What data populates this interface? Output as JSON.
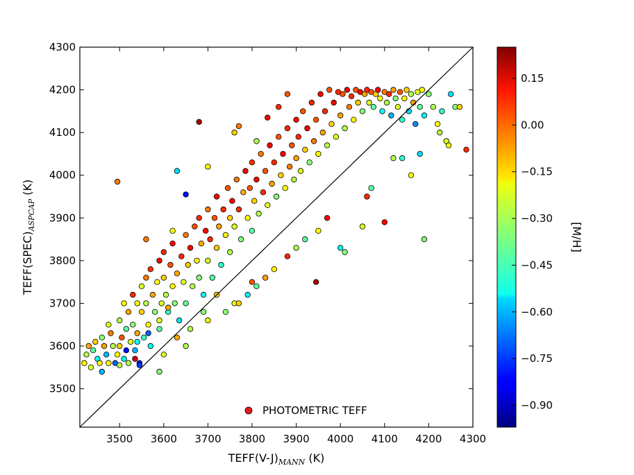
{
  "chart_data": {
    "type": "scatter",
    "xlabel": "TEFF(V-J)",
    "xlabel_sub": "MANN",
    "xlabel_unit": " (K)",
    "ylabel": "TEFF(SPEC)",
    "ylabel_sub": "ASPCAP",
    "ylabel_unit": " (K)",
    "xlim": [
      3410,
      4300
    ],
    "ylim": [
      3410,
      4300
    ],
    "xticks": [
      3500,
      3600,
      3700,
      3800,
      3900,
      4000,
      4100,
      4200,
      4300
    ],
    "yticks": [
      3500,
      3600,
      3700,
      3800,
      3900,
      4000,
      4100,
      4200,
      4300
    ],
    "one_to_one_line": true,
    "grid": false,
    "legend": {
      "label": "PHOTOMETRIC TEFF",
      "color": "#e31a1c",
      "placement": "lower-center"
    },
    "colorbar": {
      "label": "[M/H]",
      "range": [
        -0.97,
        0.25
      ],
      "ticks": [
        "0.15",
        "0.00",
        "−0.15",
        "−0.30",
        "−0.45",
        "−0.60",
        "−0.75",
        "−0.90"
      ],
      "tick_values": [
        0.15,
        0.0,
        -0.15,
        -0.3,
        -0.45,
        -0.6,
        -0.75,
        -0.9
      ],
      "colormap": "jet"
    },
    "series": [
      {
        "points": [
          [
            3420,
            3560,
            -0.2
          ],
          [
            3425,
            3580,
            -0.3
          ],
          [
            3430,
            3600,
            -0.1
          ],
          [
            3435,
            3550,
            -0.25
          ],
          [
            3440,
            3590,
            -0.4
          ],
          [
            3445,
            3610,
            -0.15
          ],
          [
            3450,
            3570,
            -0.5
          ],
          [
            3455,
            3560,
            -0.2
          ],
          [
            3460,
            3620,
            -0.35
          ],
          [
            3465,
            3600,
            -0.1
          ],
          [
            3470,
            3580,
            -0.6
          ],
          [
            3475,
            3650,
            -0.25
          ],
          [
            3480,
            3630,
            -0.05
          ],
          [
            3485,
            3600,
            -0.3
          ],
          [
            3490,
            3560,
            -0.7
          ],
          [
            3495,
            3580,
            -0.2
          ],
          [
            3500,
            3660,
            -0.3
          ],
          [
            3500,
            3600,
            -0.15
          ],
          [
            3505,
            3620,
            0.0
          ],
          [
            3510,
            3570,
            -0.5
          ],
          [
            3510,
            3700,
            -0.2
          ],
          [
            3515,
            3640,
            -0.4
          ],
          [
            3520,
            3680,
            -0.1
          ],
          [
            3520,
            3560,
            -0.3
          ],
          [
            3525,
            3610,
            -0.25
          ],
          [
            3530,
            3720,
            0.05
          ],
          [
            3530,
            3650,
            -0.35
          ],
          [
            3535,
            3590,
            -0.6
          ],
          [
            3540,
            3700,
            -0.2
          ],
          [
            3540,
            3630,
            -0.1
          ],
          [
            3545,
            3560,
            -0.8
          ],
          [
            3550,
            3740,
            -0.25
          ],
          [
            3550,
            3680,
            -0.15
          ],
          [
            3555,
            3620,
            -0.45
          ],
          [
            3560,
            3760,
            -0.05
          ],
          [
            3560,
            3700,
            -0.3
          ],
          [
            3565,
            3650,
            -0.2
          ],
          [
            3570,
            3600,
            -0.5
          ],
          [
            3570,
            3780,
            0.05
          ],
          [
            3575,
            3720,
            -0.1
          ],
          [
            3580,
            3680,
            -0.35
          ],
          [
            3585,
            3750,
            -0.2
          ],
          [
            3590,
            3800,
            0.1
          ],
          [
            3590,
            3640,
            -0.4
          ],
          [
            3595,
            3700,
            -0.25
          ],
          [
            3600,
            3760,
            -0.15
          ],
          [
            3600,
            3820,
            0.05
          ],
          [
            3605,
            3720,
            -0.3
          ],
          [
            3610,
            3680,
            -0.45
          ],
          [
            3615,
            3790,
            0.0
          ],
          [
            3620,
            3740,
            -0.2
          ],
          [
            3620,
            3840,
            0.1
          ],
          [
            3625,
            3700,
            -0.35
          ],
          [
            3630,
            3770,
            -0.1
          ],
          [
            3635,
            3660,
            -0.55
          ],
          [
            3640,
            3810,
            0.05
          ],
          [
            3645,
            3750,
            -0.25
          ],
          [
            3650,
            3860,
            -0.05
          ],
          [
            3650,
            3700,
            -0.4
          ],
          [
            3655,
            3790,
            -0.15
          ],
          [
            3660,
            3830,
            0.1
          ],
          [
            3665,
            3740,
            -0.3
          ],
          [
            3670,
            3880,
            0.0
          ],
          [
            3675,
            3800,
            -0.2
          ],
          [
            3680,
            3760,
            -0.35
          ],
          [
            3680,
            3900,
            0.05
          ],
          [
            3685,
            3840,
            -0.1
          ],
          [
            3690,
            3720,
            -0.5
          ],
          [
            3695,
            3870,
            0.1
          ],
          [
            3700,
            3800,
            -0.25
          ],
          [
            3700,
            3920,
            -0.05
          ],
          [
            3705,
            3850,
            0.05
          ],
          [
            3710,
            3760,
            -0.4
          ],
          [
            3715,
            3900,
            0.0
          ],
          [
            3720,
            3830,
            -0.15
          ],
          [
            3720,
            3950,
            0.1
          ],
          [
            3725,
            3880,
            -0.1
          ],
          [
            3730,
            3790,
            -0.45
          ],
          [
            3735,
            3920,
            0.05
          ],
          [
            3740,
            3860,
            -0.2
          ],
          [
            3745,
            3970,
            0.0
          ],
          [
            3750,
            3900,
            -0.15
          ],
          [
            3750,
            3820,
            -0.3
          ],
          [
            3755,
            3940,
            0.1
          ],
          [
            3760,
            3880,
            -0.25
          ],
          [
            3765,
            3990,
            -0.05
          ],
          [
            3770,
            3920,
            0.05
          ],
          [
            3775,
            3850,
            -0.35
          ],
          [
            3780,
            3960,
            -0.1
          ],
          [
            3785,
            4010,
            0.1
          ],
          [
            3790,
            3900,
            -0.2
          ],
          [
            3795,
            3970,
            0.0
          ],
          [
            3800,
            3870,
            -0.4
          ],
          [
            3800,
            4030,
            0.05
          ],
          [
            3805,
            3940,
            -0.15
          ],
          [
            3810,
            3990,
            0.1
          ],
          [
            3815,
            3910,
            -0.3
          ],
          [
            3820,
            4050,
            -0.05
          ],
          [
            3825,
            3960,
            0.05
          ],
          [
            3830,
            4010,
            0.0
          ],
          [
            3835,
            3930,
            -0.25
          ],
          [
            3840,
            4070,
            0.1
          ],
          [
            3845,
            3980,
            -0.1
          ],
          [
            3850,
            4030,
            0.05
          ],
          [
            3855,
            3950,
            -0.35
          ],
          [
            3860,
            4090,
            0.0
          ],
          [
            3865,
            4000,
            -0.15
          ],
          [
            3870,
            4050,
            0.1
          ],
          [
            3875,
            3970,
            -0.2
          ],
          [
            3880,
            4110,
            0.05
          ],
          [
            3885,
            4020,
            -0.05
          ],
          [
            3890,
            4070,
            0.0
          ],
          [
            3895,
            3990,
            -0.3
          ],
          [
            3900,
            4130,
            0.1
          ],
          [
            3900,
            4040,
            -0.1
          ],
          [
            3905,
            4090,
            0.05
          ],
          [
            3910,
            4010,
            -0.25
          ],
          [
            3915,
            4150,
            0.0
          ],
          [
            3920,
            4060,
            -0.15
          ],
          [
            3925,
            4110,
            0.1
          ],
          [
            3930,
            4030,
            -0.35
          ],
          [
            3935,
            4170,
            0.05
          ],
          [
            3940,
            4080,
            -0.05
          ],
          [
            3945,
            4130,
            0.0
          ],
          [
            3950,
            4050,
            -0.2
          ],
          [
            3955,
            4190,
            0.1
          ],
          [
            3960,
            4100,
            -0.1
          ],
          [
            3965,
            4150,
            0.05
          ],
          [
            3970,
            4070,
            -0.3
          ],
          [
            3975,
            4200,
            0.0
          ],
          [
            3980,
            4120,
            -0.15
          ],
          [
            3985,
            4170,
            0.1
          ],
          [
            3990,
            4090,
            -0.25
          ],
          [
            3995,
            4195,
            0.05
          ],
          [
            4000,
            4140,
            -0.1
          ],
          [
            4005,
            4190,
            0.0
          ],
          [
            4010,
            4110,
            -0.3
          ],
          [
            4015,
            4200,
            0.1
          ],
          [
            4020,
            4160,
            -0.05
          ],
          [
            4025,
            4185,
            0.05
          ],
          [
            4030,
            4130,
            -0.2
          ],
          [
            4035,
            4200,
            0.0
          ],
          [
            4040,
            4170,
            -0.15
          ],
          [
            4045,
            4195,
            0.1
          ],
          [
            4050,
            4150,
            -0.35
          ],
          [
            4055,
            4190,
            -0.1
          ],
          [
            4060,
            4200,
            0.05
          ],
          [
            4065,
            4170,
            -0.25
          ],
          [
            4070,
            4195,
            0.0
          ],
          [
            4075,
            4160,
            -0.4
          ],
          [
            4080,
            4190,
            -0.15
          ],
          [
            4085,
            4200,
            0.1
          ],
          [
            4090,
            4180,
            -0.2
          ],
          [
            4095,
            4150,
            -0.5
          ],
          [
            4100,
            4195,
            -0.05
          ],
          [
            4105,
            4170,
            -0.3
          ],
          [
            4110,
            4190,
            0.05
          ],
          [
            4115,
            4140,
            -0.6
          ],
          [
            4120,
            4200,
            -0.1
          ],
          [
            4125,
            4180,
            -0.35
          ],
          [
            4130,
            4160,
            -0.25
          ],
          [
            4135,
            4195,
            0.0
          ],
          [
            4140,
            4130,
            -0.45
          ],
          [
            4145,
            4180,
            -0.2
          ],
          [
            4150,
            4200,
            -0.15
          ],
          [
            4155,
            4150,
            -0.55
          ],
          [
            4160,
            4190,
            -0.3
          ],
          [
            4165,
            4170,
            -0.1
          ],
          [
            4170,
            4120,
            -0.65
          ],
          [
            4175,
            4195,
            -0.25
          ],
          [
            4180,
            4160,
            -0.4
          ],
          [
            4185,
            4200,
            -0.2
          ],
          [
            4190,
            4140,
            -0.5
          ],
          [
            4200,
            4190,
            -0.35
          ],
          [
            4210,
            4160,
            -0.3
          ],
          [
            4220,
            4120,
            -0.2
          ],
          [
            4230,
            4150,
            -0.45
          ],
          [
            4240,
            4080,
            -0.25
          ],
          [
            4250,
            4190,
            -0.55
          ],
          [
            4260,
            4160,
            -0.35
          ],
          [
            4270,
            4160,
            -0.15
          ],
          [
            4285,
            4060,
            0.05
          ],
          [
            4245,
            4070,
            -0.2
          ],
          [
            4225,
            4100,
            -0.3
          ],
          [
            3620,
            3870,
            -0.2
          ],
          [
            3560,
            3850,
            -0.05
          ],
          [
            3660,
            3640,
            -0.3
          ],
          [
            3690,
            3680,
            -0.35
          ],
          [
            3720,
            3720,
            -0.15
          ],
          [
            3760,
            3700,
            -0.25
          ],
          [
            3790,
            3720,
            -0.5
          ],
          [
            3800,
            3750,
            0.0
          ],
          [
            3830,
            3760,
            -0.1
          ],
          [
            3850,
            3780,
            -0.2
          ],
          [
            3880,
            3810,
            0.05
          ],
          [
            3900,
            3830,
            -0.3
          ],
          [
            3920,
            3850,
            -0.4
          ],
          [
            3950,
            3870,
            -0.2
          ],
          [
            3970,
            3900,
            0.1
          ],
          [
            4000,
            3830,
            -0.5
          ],
          [
            4010,
            3820,
            -0.35
          ],
          [
            4050,
            3880,
            -0.25
          ],
          [
            4070,
            3970,
            -0.4
          ],
          [
            4100,
            3890,
            0.1
          ],
          [
            4060,
            3950,
            0.05
          ],
          [
            4120,
            4040,
            -0.3
          ],
          [
            4140,
            4040,
            -0.45
          ],
          [
            4160,
            4000,
            -0.2
          ],
          [
            4180,
            4050,
            -0.55
          ],
          [
            4190,
            3850,
            -0.35
          ],
          [
            3945,
            3750,
            0.2
          ],
          [
            3680,
            4125,
            0.2
          ],
          [
            3495,
            3985,
            -0.05
          ],
          [
            3630,
            4010,
            -0.55
          ],
          [
            3650,
            3955,
            -0.8
          ],
          [
            3700,
            4020,
            -0.2
          ],
          [
            3760,
            4100,
            -0.15
          ],
          [
            3770,
            4115,
            -0.05
          ],
          [
            3810,
            4080,
            -0.3
          ],
          [
            3835,
            4135,
            0.1
          ],
          [
            3860,
            4160,
            0.05
          ],
          [
            3880,
            4190,
            0.0
          ],
          [
            3590,
            3540,
            -0.35
          ],
          [
            3545,
            3555,
            -0.75
          ],
          [
            3535,
            3570,
            0.15
          ],
          [
            3600,
            3580,
            -0.25
          ],
          [
            3630,
            3620,
            -0.1
          ],
          [
            3650,
            3600,
            -0.3
          ],
          [
            3700,
            3660,
            -0.2
          ],
          [
            3740,
            3680,
            -0.35
          ],
          [
            3770,
            3700,
            -0.15
          ],
          [
            3810,
            3740,
            -0.4
          ],
          [
            3460,
            3540,
            -0.6
          ],
          [
            3475,
            3560,
            -0.2
          ],
          [
            3500,
            3555,
            -0.3
          ],
          [
            3515,
            3590,
            -0.8
          ],
          [
            3540,
            3610,
            -0.5
          ],
          [
            3565,
            3630,
            -0.7
          ],
          [
            3590,
            3660,
            -0.25
          ],
          [
            3610,
            3690,
            -0.1
          ]
        ]
      }
    ]
  }
}
